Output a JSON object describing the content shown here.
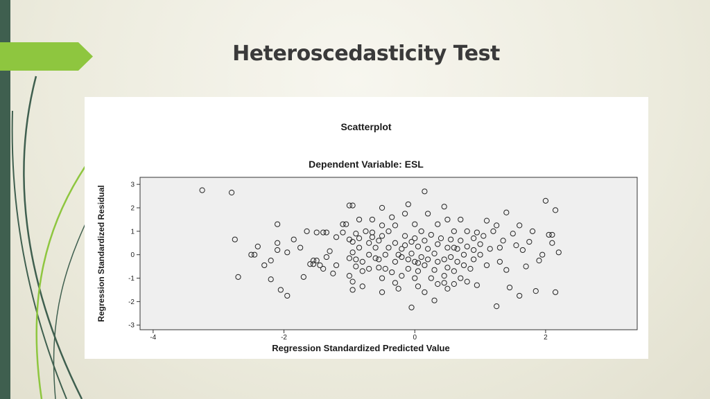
{
  "slide": {
    "title": "Heteroscedasticity Test"
  },
  "chart_data": {
    "type": "scatter",
    "title": "Scatterplot",
    "subtitle": "Dependent Variable: ESL",
    "xlabel": "Regression Standardized Predicted Value",
    "ylabel": "Regression Standardized Residual",
    "xlim": [
      -4.2,
      3.4
    ],
    "ylim": [
      -3.2,
      3.3
    ],
    "xticks": [
      -4,
      -2,
      0,
      2
    ],
    "xtick_labels": [
      "-4",
      "-2",
      "0",
      "2"
    ],
    "yticks": [
      -3,
      -2,
      -1,
      0,
      1,
      2,
      3
    ],
    "ytick_labels": [
      "-3",
      "-2",
      "-1",
      "0",
      "1",
      "2",
      "3"
    ],
    "grid": false,
    "marker": "open-circle",
    "colors": {
      "plot_background": "#efefef",
      "marker_stroke": "#222222"
    },
    "series": [
      {
        "values": [
          [
            -3.25,
            2.75
          ],
          [
            -2.8,
            2.65
          ],
          [
            -2.75,
            0.65
          ],
          [
            -2.7,
            -0.95
          ],
          [
            -2.5,
            0.0
          ],
          [
            -2.45,
            0.0
          ],
          [
            -2.4,
            0.35
          ],
          [
            -2.3,
            -0.45
          ],
          [
            -2.2,
            -0.25
          ],
          [
            -2.2,
            -1.05
          ],
          [
            -2.1,
            1.3
          ],
          [
            -2.1,
            0.5
          ],
          [
            -2.1,
            0.2
          ],
          [
            -2.05,
            -1.5
          ],
          [
            -1.95,
            -1.75
          ],
          [
            -1.95,
            0.1
          ],
          [
            -1.85,
            0.65
          ],
          [
            -1.75,
            0.3
          ],
          [
            -1.7,
            -0.95
          ],
          [
            -1.6,
            -0.4
          ],
          [
            -1.55,
            -0.4
          ],
          [
            -1.5,
            0.95
          ],
          [
            -1.5,
            -0.25
          ],
          [
            -1.45,
            -0.45
          ],
          [
            -1.4,
            0.95
          ],
          [
            -1.4,
            -0.6
          ],
          [
            -1.35,
            0.95
          ],
          [
            -1.35,
            -0.1
          ],
          [
            -1.3,
            0.15
          ],
          [
            -1.25,
            -0.8
          ],
          [
            -1.2,
            -0.45
          ],
          [
            -1.2,
            0.75
          ],
          [
            -1.1,
            1.3
          ],
          [
            -1.1,
            0.95
          ],
          [
            -1.05,
            1.3
          ],
          [
            -1.0,
            2.1
          ],
          [
            -1.0,
            0.65
          ],
          [
            -1.0,
            -0.15
          ],
          [
            -1.0,
            -0.9
          ],
          [
            -0.95,
            2.1
          ],
          [
            -0.95,
            0.55
          ],
          [
            -0.95,
            0.1
          ],
          [
            -0.95,
            -1.15
          ],
          [
            -0.95,
            -1.5
          ],
          [
            -0.9,
            0.9
          ],
          [
            -0.9,
            -0.2
          ],
          [
            -0.9,
            -0.5
          ],
          [
            -0.85,
            1.5
          ],
          [
            -0.85,
            0.3
          ],
          [
            -0.85,
            0.7
          ],
          [
            -0.8,
            -0.3
          ],
          [
            -0.8,
            -0.7
          ],
          [
            -0.8,
            -1.35
          ],
          [
            -0.75,
            1.0
          ],
          [
            -0.7,
            0.5
          ],
          [
            -0.7,
            0.0
          ],
          [
            -0.7,
            -0.6
          ],
          [
            -0.65,
            1.5
          ],
          [
            -0.65,
            0.95
          ],
          [
            -0.65,
            0.75
          ],
          [
            -0.6,
            0.3
          ],
          [
            -0.6,
            -0.15
          ],
          [
            -0.55,
            0.6
          ],
          [
            -0.55,
            -0.2
          ],
          [
            -0.55,
            -0.55
          ],
          [
            -0.5,
            2.0
          ],
          [
            -0.5,
            1.25
          ],
          [
            -0.5,
            0.8
          ],
          [
            -0.5,
            -1.0
          ],
          [
            -0.5,
            -1.6
          ],
          [
            -0.45,
            0.0
          ],
          [
            -0.45,
            -0.6
          ],
          [
            -0.4,
            0.3
          ],
          [
            -0.4,
            1.0
          ],
          [
            -0.35,
            -0.75
          ],
          [
            -0.35,
            1.6
          ],
          [
            -0.3,
            1.25
          ],
          [
            -0.3,
            0.5
          ],
          [
            -0.3,
            -0.3
          ],
          [
            -0.3,
            -1.2
          ],
          [
            -0.25,
            0.0
          ],
          [
            -0.25,
            -1.45
          ],
          [
            -0.2,
            0.25
          ],
          [
            -0.2,
            -0.9
          ],
          [
            -0.15,
            1.75
          ],
          [
            -0.15,
            0.8
          ],
          [
            -0.15,
            0.4
          ],
          [
            -0.1,
            2.15
          ],
          [
            -0.1,
            -0.2
          ],
          [
            -0.1,
            -0.6
          ],
          [
            -0.05,
            0.55
          ],
          [
            -0.05,
            0.05
          ],
          [
            -0.05,
            -2.25
          ],
          [
            0.0,
            1.3
          ],
          [
            0.0,
            0.7
          ],
          [
            0.0,
            -0.3
          ],
          [
            0.0,
            -1.0
          ],
          [
            0.05,
            0.35
          ],
          [
            0.05,
            -0.7
          ],
          [
            0.05,
            -1.35
          ],
          [
            0.1,
            1.0
          ],
          [
            0.1,
            -0.1
          ],
          [
            0.15,
            2.7
          ],
          [
            0.15,
            0.6
          ],
          [
            0.15,
            -0.45
          ],
          [
            0.15,
            -1.6
          ],
          [
            0.2,
            1.75
          ],
          [
            0.2,
            0.25
          ],
          [
            0.2,
            -0.2
          ],
          [
            0.25,
            0.85
          ],
          [
            0.25,
            -1.0
          ],
          [
            0.3,
            -1.95
          ],
          [
            0.3,
            0.05
          ],
          [
            0.3,
            -0.65
          ],
          [
            0.35,
            1.3
          ],
          [
            0.35,
            0.45
          ],
          [
            0.35,
            -1.25
          ],
          [
            0.35,
            -0.3
          ],
          [
            0.4,
            0.7
          ],
          [
            0.45,
            2.05
          ],
          [
            0.45,
            -0.2
          ],
          [
            0.45,
            -0.9
          ],
          [
            0.5,
            1.5
          ],
          [
            0.5,
            0.3
          ],
          [
            0.5,
            -0.55
          ],
          [
            0.5,
            -1.45
          ],
          [
            0.55,
            0.65
          ],
          [
            0.55,
            -0.1
          ],
          [
            0.6,
            1.0
          ],
          [
            0.6,
            -0.7
          ],
          [
            0.6,
            -1.25
          ],
          [
            0.65,
            0.25
          ],
          [
            0.65,
            -0.3
          ],
          [
            0.7,
            1.5
          ],
          [
            0.7,
            0.6
          ],
          [
            0.7,
            -1.0
          ],
          [
            0.75,
            0.0
          ],
          [
            0.75,
            -0.45
          ],
          [
            0.8,
            1.0
          ],
          [
            0.8,
            0.35
          ],
          [
            0.8,
            -1.15
          ],
          [
            0.85,
            -0.6
          ],
          [
            0.9,
            0.7
          ],
          [
            0.9,
            -0.2
          ],
          [
            0.95,
            0.95
          ],
          [
            0.95,
            -1.3
          ],
          [
            1.0,
            0.45
          ],
          [
            1.0,
            0.0
          ],
          [
            1.05,
            0.8
          ],
          [
            1.1,
            -0.45
          ],
          [
            1.15,
            0.25
          ],
          [
            1.2,
            1.0
          ],
          [
            1.25,
            1.25
          ],
          [
            1.3,
            -0.3
          ],
          [
            1.35,
            0.6
          ],
          [
            1.4,
            1.8
          ],
          [
            1.4,
            -0.65
          ],
          [
            1.45,
            -1.4
          ],
          [
            1.5,
            0.9
          ],
          [
            1.55,
            0.4
          ],
          [
            1.6,
            1.25
          ],
          [
            1.65,
            0.2
          ],
          [
            1.7,
            -0.5
          ],
          [
            1.75,
            0.55
          ],
          [
            1.8,
            1.0
          ],
          [
            1.85,
            -1.55
          ],
          [
            1.9,
            -0.25
          ],
          [
            1.95,
            0.0
          ],
          [
            2.0,
            2.3
          ],
          [
            2.05,
            0.85
          ],
          [
            2.1,
            0.85
          ],
          [
            2.1,
            0.5
          ],
          [
            2.15,
            1.9
          ],
          [
            2.15,
            -1.6
          ],
          [
            2.2,
            0.1
          ],
          [
            -1.55,
            -0.25
          ],
          [
            1.3,
            0.3
          ],
          [
            1.6,
            -1.75
          ],
          [
            1.25,
            -2.2
          ],
          [
            0.6,
            0.3
          ],
          [
            0.45,
            -1.2
          ],
          [
            0.05,
            -0.35
          ],
          [
            -0.2,
            -0.1
          ],
          [
            1.1,
            1.45
          ],
          [
            -1.65,
            1.0
          ],
          [
            0.9,
            0.2
          ]
        ]
      }
    ]
  }
}
